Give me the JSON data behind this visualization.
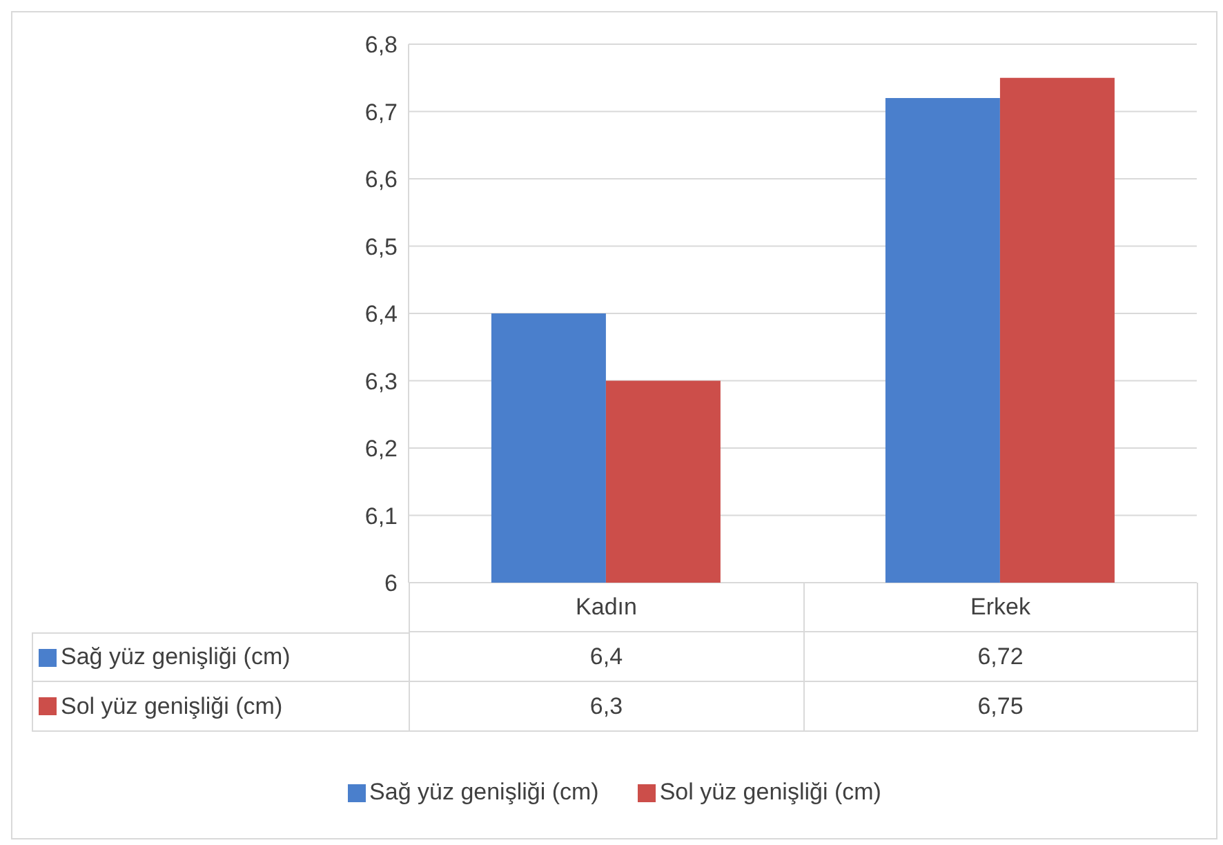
{
  "chart_data": {
    "type": "bar",
    "categories": [
      "Kadın",
      "Erkek"
    ],
    "series": [
      {
        "name": "Sağ yüz genişliği (cm)",
        "color": "#4a7fcc",
        "values": [
          6.4,
          6.72
        ],
        "value_labels": [
          "6,4",
          "6,72"
        ]
      },
      {
        "name": "Sol yüz genişliği (cm)",
        "color": "#cc4e4a",
        "values": [
          6.3,
          6.75
        ],
        "value_labels": [
          "6,3",
          "6,75"
        ]
      }
    ],
    "ylim": [
      6,
      6.8
    ],
    "yticks": [
      {
        "value": 6,
        "label": "6"
      },
      {
        "value": 6.1,
        "label": "6,1"
      },
      {
        "value": 6.2,
        "label": "6,2"
      },
      {
        "value": 6.3,
        "label": "6,3"
      },
      {
        "value": 6.4,
        "label": "6,4"
      },
      {
        "value": 6.5,
        "label": "6,5"
      },
      {
        "value": 6.6,
        "label": "6,6"
      },
      {
        "value": 6.7,
        "label": "6,7"
      },
      {
        "value": 6.8,
        "label": "6,8"
      }
    ],
    "grid": "y",
    "legend": "bottom"
  }
}
